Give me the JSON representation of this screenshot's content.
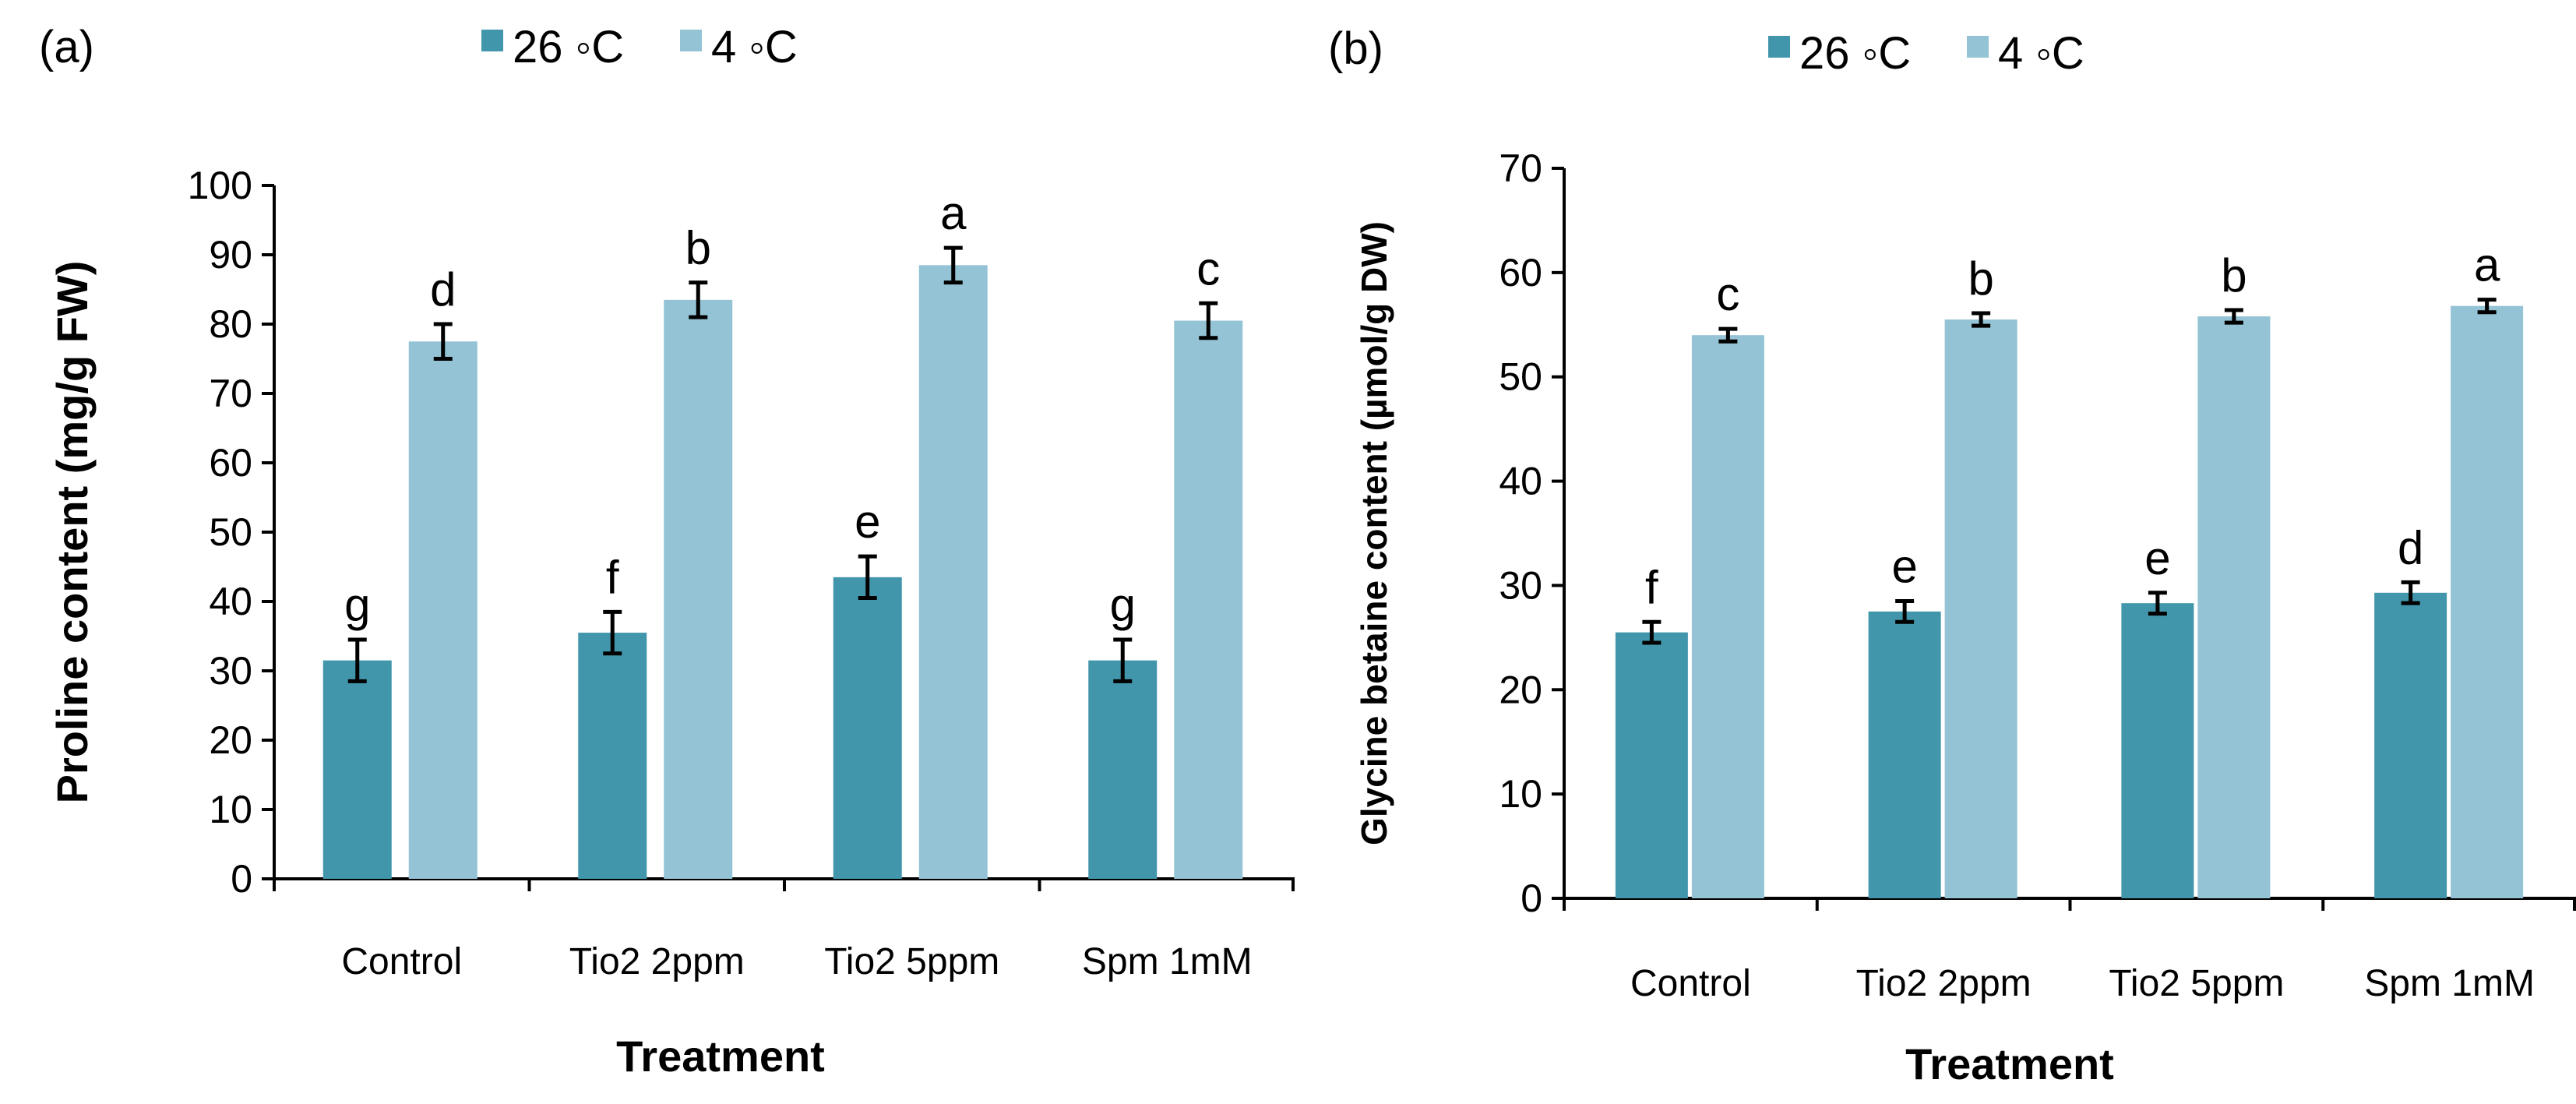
{
  "colors": {
    "series_26": "#4296ab",
    "series_4": "#93c3d5"
  },
  "chart_data": [
    {
      "type": "bar",
      "panel_label": "(a)",
      "categories": [
        "Control",
        "Tio2 2ppm",
        "Tio2 5ppm",
        "Spm 1mM"
      ],
      "xlabel": "Treatment",
      "ylabel": "Proline content (mg/g FW)",
      "ylim": [
        0,
        100
      ],
      "yticks": [
        "0",
        "10",
        "20",
        "30",
        "40",
        "50",
        "60",
        "70",
        "80",
        "90",
        "100"
      ],
      "legend_position": "top-center",
      "grid": false,
      "series": [
        {
          "name": "26 ◦C",
          "values": [
            31.5,
            35.5,
            43.5,
            31.5
          ],
          "errors": [
            3.0,
            3.0,
            3.0,
            3.0
          ],
          "letters": [
            "g",
            "f",
            "e",
            "g"
          ]
        },
        {
          "name": "4 ◦C",
          "values": [
            77.5,
            83.5,
            88.5,
            80.5
          ],
          "errors": [
            2.5,
            2.5,
            2.5,
            2.5
          ],
          "letters": [
            "d",
            "b",
            "a",
            "c"
          ]
        }
      ]
    },
    {
      "type": "bar",
      "panel_label": "(b)",
      "categories": [
        "Control",
        "Tio2 2ppm",
        "Tio2 5ppm",
        "Spm 1mM"
      ],
      "xlabel": "Treatment",
      "ylabel": "Glycine betaine content (µmol/g DW)",
      "ylim": [
        0,
        70
      ],
      "yticks": [
        "0",
        "10",
        "20",
        "30",
        "40",
        "50",
        "60",
        "70"
      ],
      "legend_position": "top-center",
      "grid": false,
      "series": [
        {
          "name": "26 ◦C",
          "values": [
            25.5,
            27.5,
            28.3,
            29.3
          ],
          "errors": [
            1.0,
            1.0,
            1.0,
            1.0
          ],
          "letters": [
            "f",
            "e",
            "e",
            "d"
          ]
        },
        {
          "name": "4 ◦C",
          "values": [
            54.0,
            55.5,
            55.8,
            56.8
          ],
          "errors": [
            0.6,
            0.6,
            0.6,
            0.6
          ],
          "letters": [
            "c",
            "b",
            "b",
            "a"
          ]
        }
      ]
    }
  ]
}
